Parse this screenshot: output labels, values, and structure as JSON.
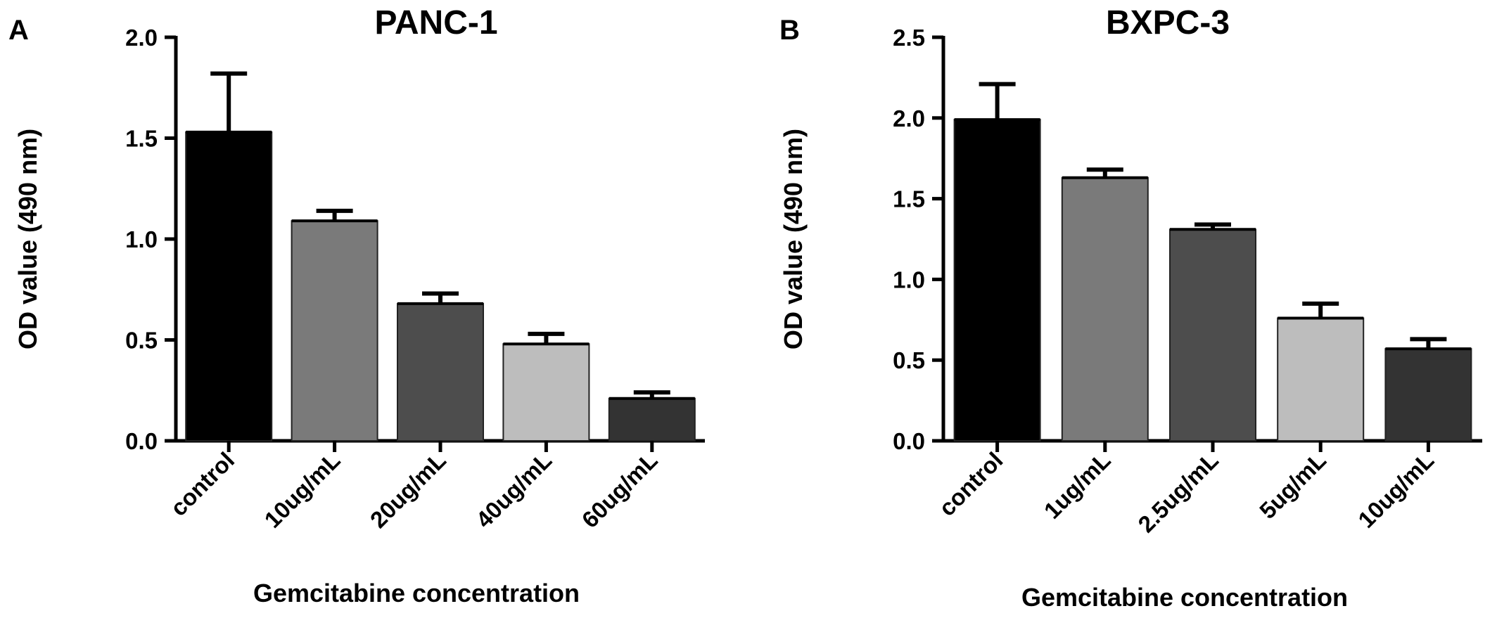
{
  "chart_data": [
    {
      "type": "bar",
      "panel_label": "A",
      "title": "PANC-1",
      "xlabel": "Gemcitabine concentration",
      "ylabel": "OD value (490 nm)",
      "categories": [
        "control",
        "10ug/mL",
        "20ug/mL",
        "40ug/mL",
        "60ug/mL"
      ],
      "values": [
        1.53,
        1.09,
        0.68,
        0.48,
        0.21
      ],
      "errors": [
        0.29,
        0.05,
        0.05,
        0.05,
        0.03
      ],
      "bar_colors": [
        "#000000",
        "#7a7a7a",
        "#4d4d4d",
        "#bdbdbd",
        "#333333"
      ],
      "ylim": [
        0,
        2.0
      ],
      "yticks": [
        0.0,
        0.5,
        1.0,
        1.5,
        2.0
      ],
      "ytick_labels": [
        "0.0",
        "0.5",
        "1.0",
        "1.5",
        "2.0"
      ],
      "grid": false,
      "legend": "none"
    },
    {
      "type": "bar",
      "panel_label": "B",
      "title": "BXPC-3",
      "xlabel": "Gemcitabine concentration",
      "ylabel": "OD value (490 nm)",
      "categories": [
        "control",
        "1ug/mL",
        "2.5ug/mL",
        "5ug/mL",
        "10ug/mL"
      ],
      "values": [
        1.99,
        1.63,
        1.31,
        0.76,
        0.57
      ],
      "errors": [
        0.22,
        0.05,
        0.03,
        0.09,
        0.06
      ],
      "bar_colors": [
        "#000000",
        "#7a7a7a",
        "#4d4d4d",
        "#bdbdbd",
        "#333333"
      ],
      "ylim": [
        0,
        2.5
      ],
      "yticks": [
        0.0,
        0.5,
        1.0,
        1.5,
        2.0,
        2.5
      ],
      "ytick_labels": [
        "0.0",
        "0.5",
        "1.0",
        "1.5",
        "2.0",
        "2.5"
      ],
      "grid": false,
      "legend": "none"
    }
  ]
}
